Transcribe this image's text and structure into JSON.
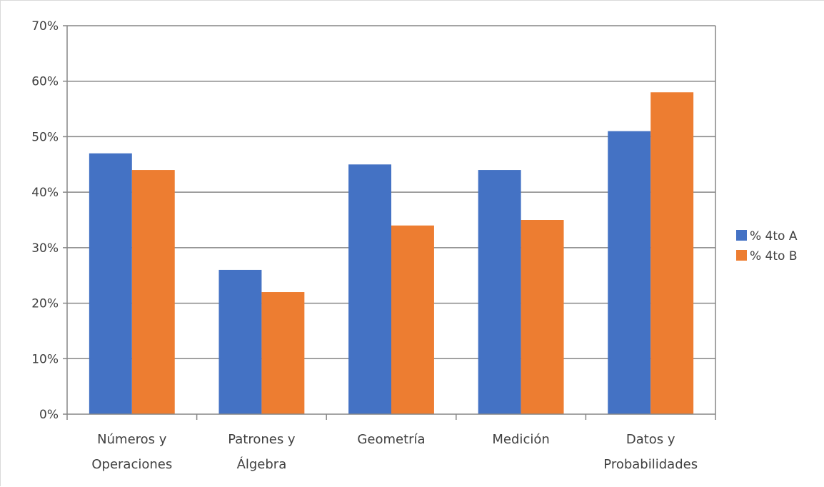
{
  "chart_data": {
    "type": "bar",
    "title": "",
    "xlabel": "",
    "ylabel": "",
    "categories": [
      [
        "Números y",
        "Operaciones"
      ],
      [
        "Patrones y",
        "Álgebra"
      ],
      [
        "Geometría"
      ],
      [
        "Medición"
      ],
      [
        "Datos y",
        "Probabilidades"
      ]
    ],
    "series": [
      {
        "name": "% 4to A",
        "color": "#4472C4",
        "values": [
          47,
          26,
          45,
          44,
          51
        ]
      },
      {
        "name": "% 4to B",
        "color": "#ED7D31",
        "values": [
          44,
          22,
          34,
          35,
          58
        ]
      }
    ],
    "ylim": [
      0,
      70
    ],
    "yticks": [
      "0%",
      "10%",
      "20%",
      "30%",
      "40%",
      "50%",
      "60%",
      "70%"
    ],
    "grid": true,
    "legend_position": "right"
  }
}
